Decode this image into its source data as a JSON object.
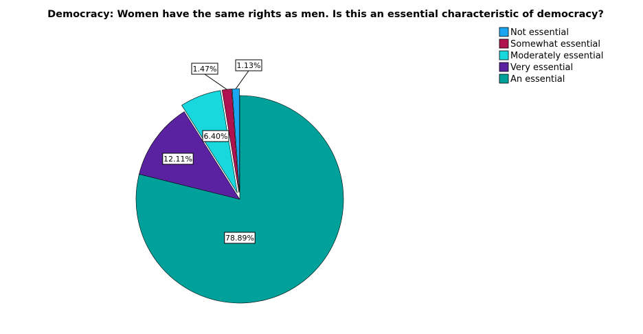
{
  "chart_data": {
    "type": "pie",
    "title": "Democracy: Women have the same rights as men. Is this an essential characteristic of democracy?",
    "legend_position": "top-right",
    "slices": [
      {
        "name": "Not essential",
        "value": 1.13,
        "label": "1.13%",
        "color": "#1aa6f0"
      },
      {
        "name": "Somewhat essential",
        "value": 1.47,
        "label": "1.47%",
        "color": "#b0124f"
      },
      {
        "name": "Moderately essential",
        "value": 6.4,
        "label": "6.40%",
        "color": "#18d8dd"
      },
      {
        "name": "Very essential",
        "value": 12.11,
        "label": "12.11%",
        "color": "#5a22a0"
      },
      {
        "name": "An essential",
        "value": 78.89,
        "label": "78.89%",
        "color": "#00a19a"
      }
    ]
  }
}
